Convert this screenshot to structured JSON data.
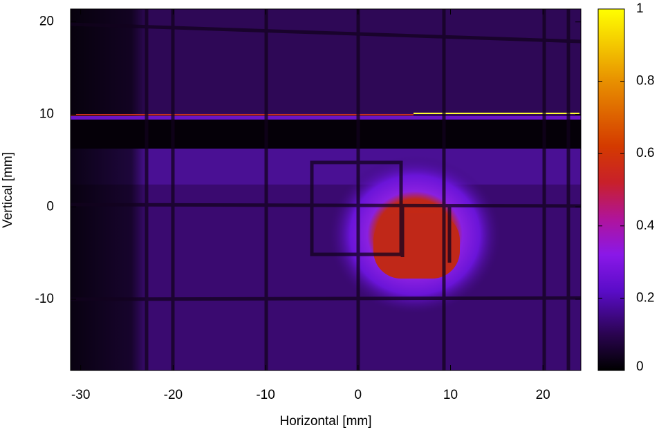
{
  "chart_data": {
    "type": "heatmap",
    "xlabel": "Horizontal [mm]",
    "ylabel": "Vertical [mm]",
    "xlim": [
      -31.1,
      24.1
    ],
    "xticks": [
      -30,
      -20,
      -10,
      0,
      10,
      20
    ],
    "ylim": [
      -17.7,
      21.4
    ],
    "yticks": [
      -10,
      0,
      10,
      20
    ],
    "zlim": [
      0,
      1
    ],
    "zticks": [
      0,
      0.2,
      0.4,
      0.6,
      0.8,
      1
    ]
  }
}
